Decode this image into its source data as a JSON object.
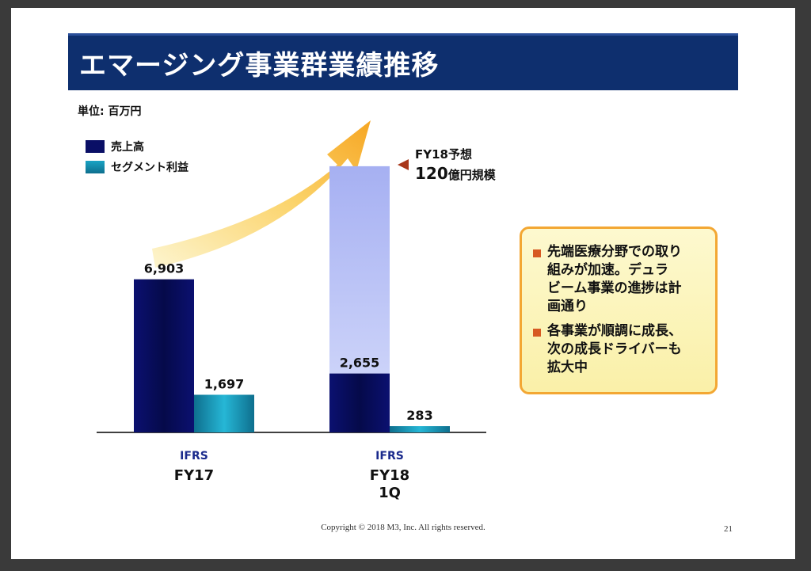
{
  "title": "エマージング事業群業績推移",
  "unit": "単位: 百万円",
  "legend": [
    {
      "label": "売上高",
      "color": "#0a0f66"
    },
    {
      "label": "セグメント利益",
      "color": "#1a8fb0"
    }
  ],
  "forecast": {
    "line1": "FY18予想",
    "line2_value": "120",
    "line2_suffix": "億円規模"
  },
  "notes": [
    "先端医療分野での取り\n組みが加速。デュラ\nビーム事業の進捗は計\n画通り",
    "各事業が順調に成長、\n次の成長ドライバーも\n拡大中"
  ],
  "footer": {
    "copyright": "Copyright © 2018  M3, Inc.  All rights reserved.",
    "page": "21"
  },
  "chart_data": {
    "type": "bar",
    "categories": [
      {
        "standard": "IFRS",
        "label": "FY17",
        "label2": ""
      },
      {
        "standard": "IFRS",
        "label": "FY18",
        "label2": "1Q"
      }
    ],
    "series": [
      {
        "name": "売上高",
        "values": [
          6903,
          2655
        ],
        "labels": [
          "6,903",
          "2,655"
        ],
        "color": "#0a0f66"
      },
      {
        "name": "セグメント利益",
        "values": [
          1697,
          283
        ],
        "labels": [
          "1,697",
          "283"
        ],
        "color": "#1a8fb0"
      }
    ],
    "forecast_bar": {
      "category_index": 1,
      "series": "売上高",
      "value": 12000,
      "color": "#aab4f0"
    }
  }
}
